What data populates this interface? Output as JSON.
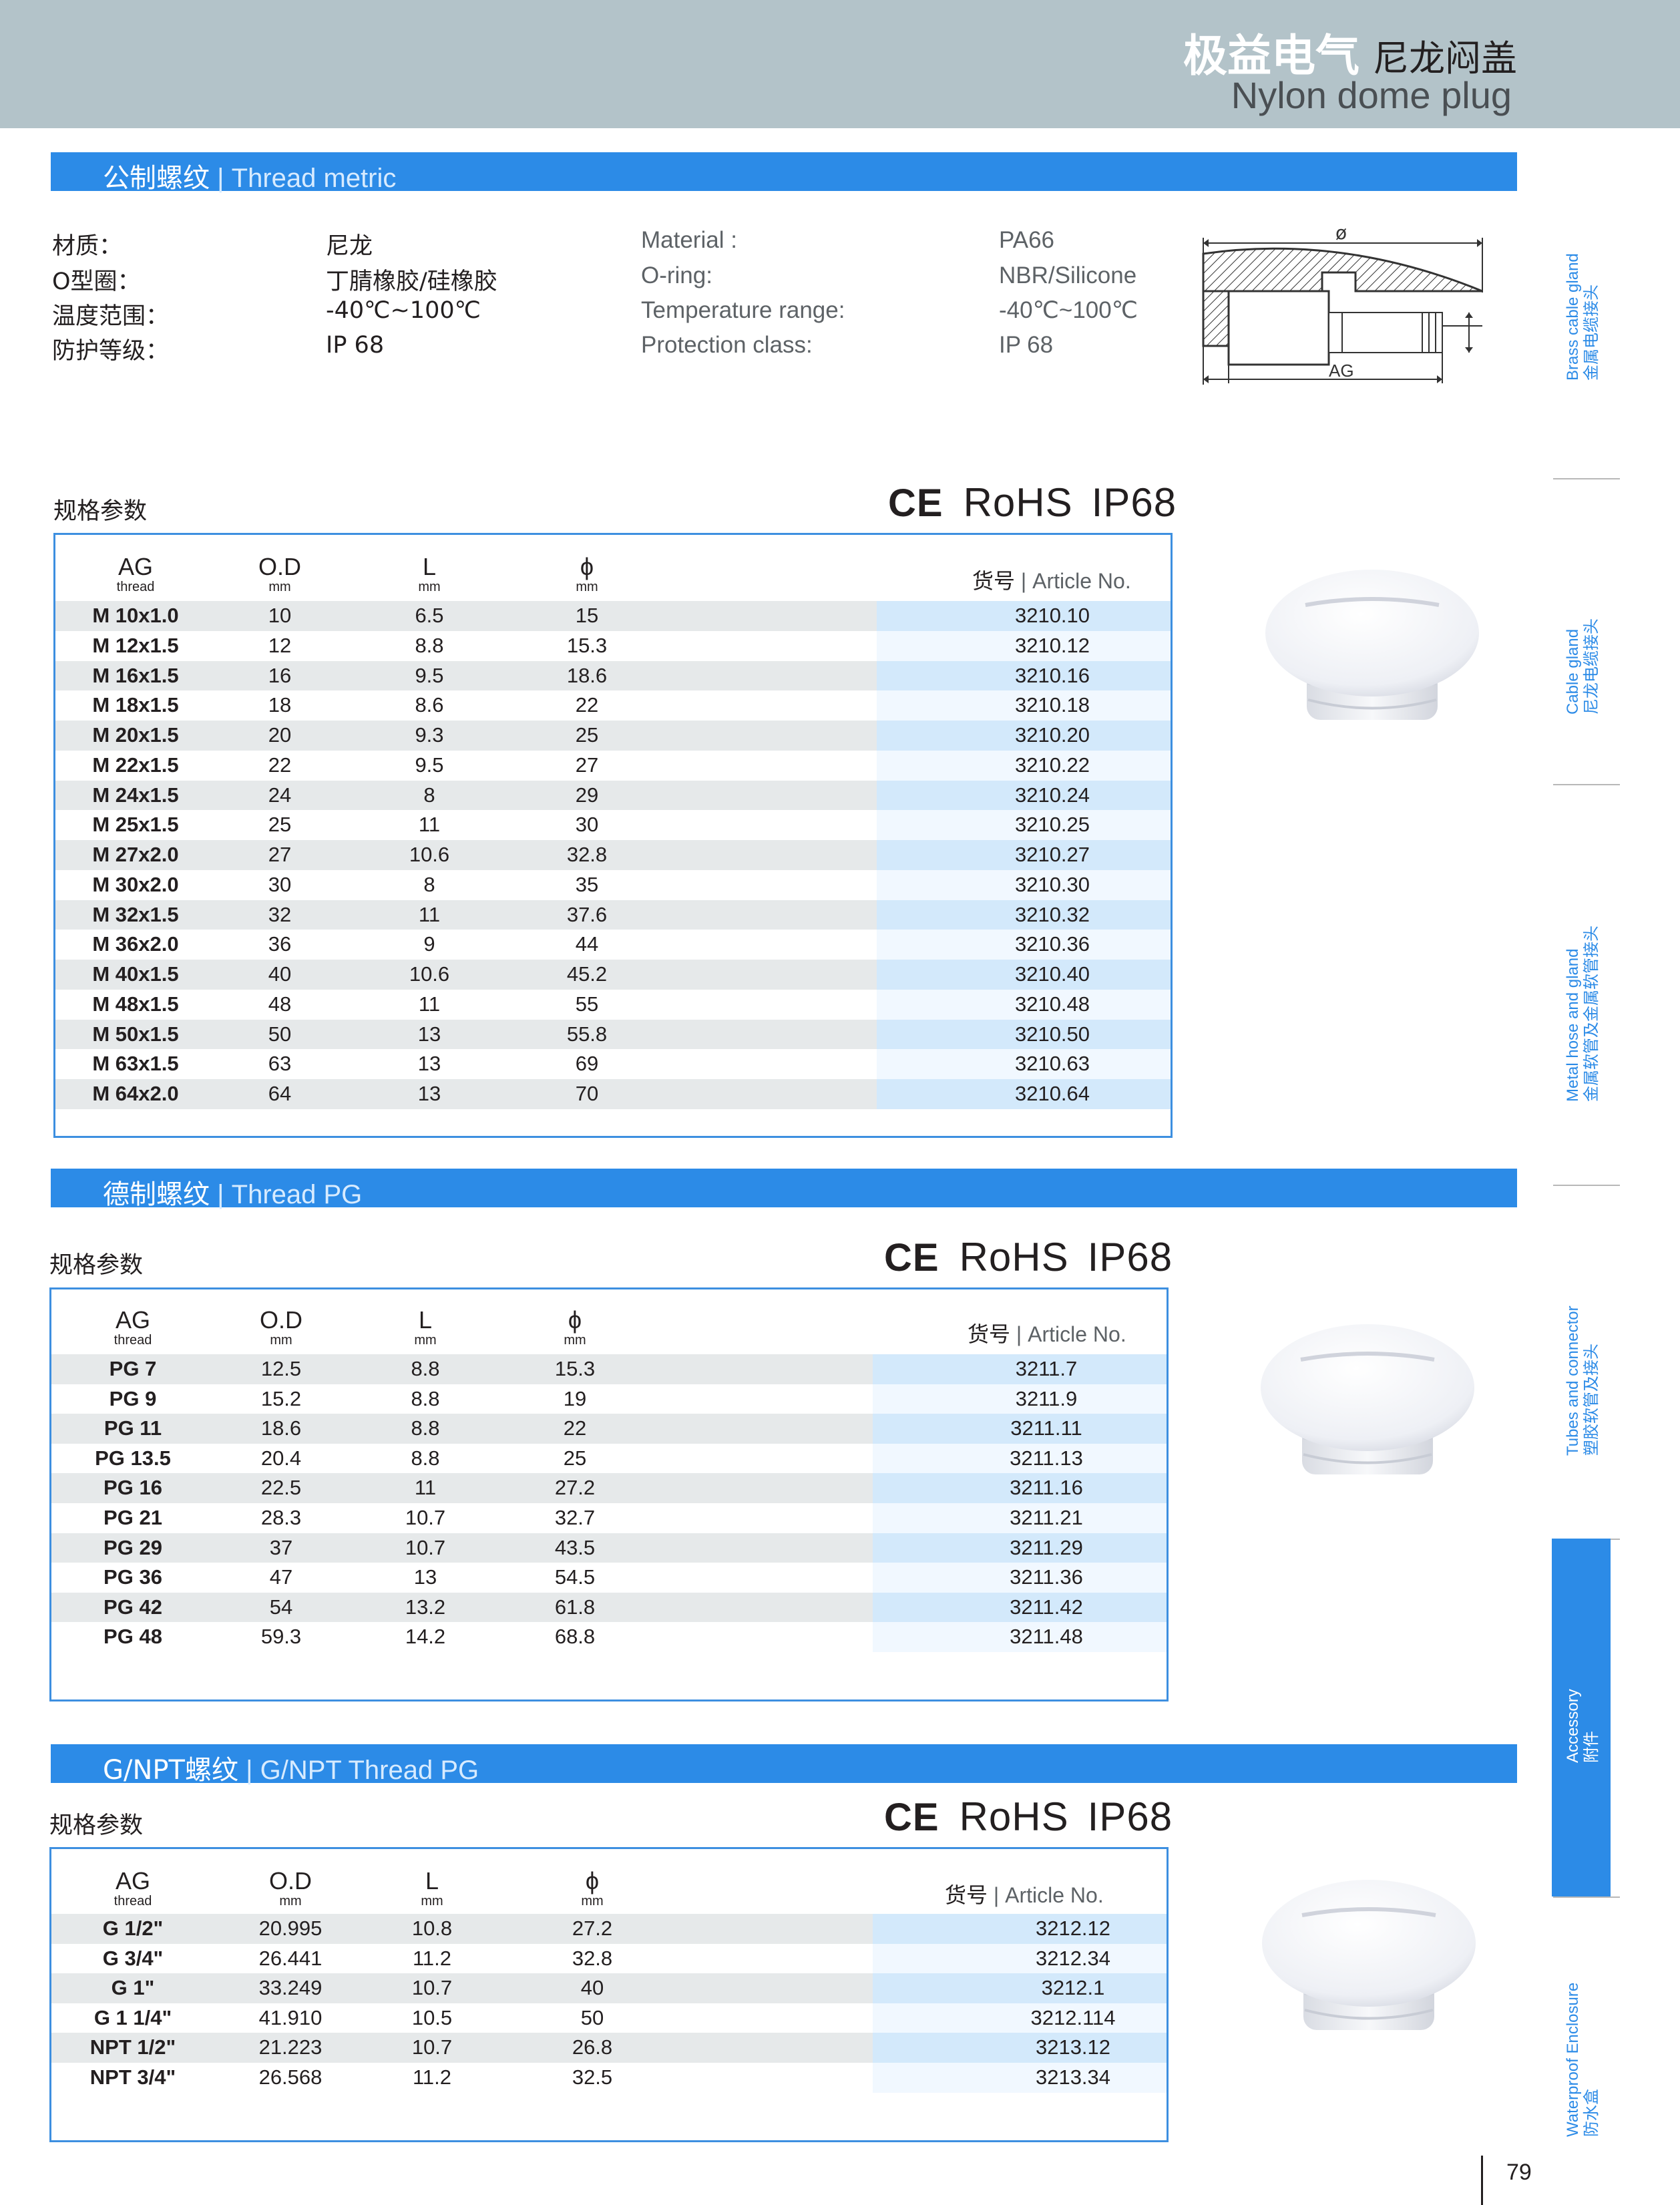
{
  "header": {
    "brand_cn": "极益电气",
    "product_cn": "尼龙闷盖",
    "product_en": "Nylon dome plug"
  },
  "sections": {
    "metric": {
      "cn": "公制螺纹",
      "sep": "|",
      "en": "Thread metric"
    },
    "pg": {
      "cn": "德制螺纹",
      "sep": "|",
      "en": "Thread PG"
    },
    "gnpt": {
      "cn": "G/NPT螺纹",
      "sep": "|",
      "en": "G/NPT Thread PG"
    }
  },
  "specs": {
    "cn_labels": [
      "材质：",
      "O型圈：",
      "温度范围：",
      "防护等级："
    ],
    "cn_values": [
      "尼龙",
      "丁腈橡胶/硅橡胶",
      "-40℃~100℃",
      "IP 68"
    ],
    "en_labels": [
      "Material :",
      "O-ring:",
      "Temperature range:",
      "Protection class:"
    ],
    "en_values": [
      "PA66",
      "NBR/Silicone",
      "-40℃~100℃",
      "IP 68"
    ]
  },
  "drawing": {
    "phi": "ø",
    "ag": "AG"
  },
  "spec_heading": "规格参数",
  "cert": {
    "ce": "CE",
    "rohs": "RoHS",
    "ip": "IP68"
  },
  "table_headers": {
    "ag": "AG",
    "ag_sub": "thread",
    "od": "O.D",
    "od_sub": "mm",
    "l": "L",
    "l_sub": "mm",
    "phi": "ϕ",
    "phi_sub": "mm",
    "article_cn": "货号",
    "article_en": "| Article No."
  },
  "tables": {
    "metric": [
      [
        "M 10x1.0",
        "10",
        "6.5",
        "15",
        "3210.10"
      ],
      [
        "M 12x1.5",
        "12",
        "8.8",
        "15.3",
        "3210.12"
      ],
      [
        "M 16x1.5",
        "16",
        "9.5",
        "18.6",
        "3210.16"
      ],
      [
        "M 18x1.5",
        "18",
        "8.6",
        "22",
        "3210.18"
      ],
      [
        "M 20x1.5",
        "20",
        "9.3",
        "25",
        "3210.20"
      ],
      [
        "M 22x1.5",
        "22",
        "9.5",
        "27",
        "3210.22"
      ],
      [
        "M 24x1.5",
        "24",
        "8",
        "29",
        "3210.24"
      ],
      [
        "M 25x1.5",
        "25",
        "11",
        "30",
        "3210.25"
      ],
      [
        "M 27x2.0",
        "27",
        "10.6",
        "32.8",
        "3210.27"
      ],
      [
        "M 30x2.0",
        "30",
        "8",
        "35",
        "3210.30"
      ],
      [
        "M 32x1.5",
        "32",
        "11",
        "37.6",
        "3210.32"
      ],
      [
        "M 36x2.0",
        "36",
        "9",
        "44",
        "3210.36"
      ],
      [
        "M 40x1.5",
        "40",
        "10.6",
        "45.2",
        "3210.40"
      ],
      [
        "M 48x1.5",
        "48",
        "11",
        "55",
        "3210.48"
      ],
      [
        "M 50x1.5",
        "50",
        "13",
        "55.8",
        "3210.50"
      ],
      [
        "M 63x1.5",
        "63",
        "13",
        "69",
        "3210.63"
      ],
      [
        "M 64x2.0",
        "64",
        "13",
        "70",
        "3210.64"
      ]
    ],
    "pg": [
      [
        "PG 7",
        "12.5",
        "8.8",
        "15.3",
        "3211.7"
      ],
      [
        "PG 9",
        "15.2",
        "8.8",
        "19",
        "3211.9"
      ],
      [
        "PG 11",
        "18.6",
        "8.8",
        "22",
        "3211.11"
      ],
      [
        "PG 13.5",
        "20.4",
        "8.8",
        "25",
        "3211.13"
      ],
      [
        "PG 16",
        "22.5",
        "11",
        "27.2",
        "3211.16"
      ],
      [
        "PG 21",
        "28.3",
        "10.7",
        "32.7",
        "3211.21"
      ],
      [
        "PG 29",
        "37",
        "10.7",
        "43.5",
        "3211.29"
      ],
      [
        "PG 36",
        "47",
        "13",
        "54.5",
        "3211.36"
      ],
      [
        "PG 42",
        "54",
        "13.2",
        "61.8",
        "3211.42"
      ],
      [
        "PG 48",
        "59.3",
        "14.2",
        "68.8",
        "3211.48"
      ]
    ],
    "gnpt": [
      [
        "G 1/2\"",
        "20.995",
        "10.8",
        "27.2",
        "3212.12"
      ],
      [
        "G 3/4\"",
        "26.441",
        "11.2",
        "32.8",
        "3212.34"
      ],
      [
        "G 1\"",
        "33.249",
        "10.7",
        "40",
        "3212.1"
      ],
      [
        "G 1 1/4\"",
        "41.910",
        "10.5",
        "50",
        "3212.114"
      ],
      [
        "NPT 1/2\"",
        "21.223",
        "10.7",
        "26.8",
        "3213.12"
      ],
      [
        "NPT 3/4\"",
        "26.568",
        "11.2",
        "32.5",
        "3213.34"
      ]
    ]
  },
  "side_tabs": [
    {
      "en": "Brass cable gland",
      "cn": "金属电缆接头"
    },
    {
      "en": "Cable gland",
      "cn": "尼龙电缆接头"
    },
    {
      "en": "Metal hose and gland",
      "cn": "金属软管及金属软管接头"
    },
    {
      "en": "Tubes and connector",
      "cn": "塑胶软管及接头"
    },
    {
      "en": "Accessory",
      "cn": "附件"
    },
    {
      "en": "Waterproof Enclosure",
      "cn": "防水盒"
    }
  ],
  "page_number": "79"
}
